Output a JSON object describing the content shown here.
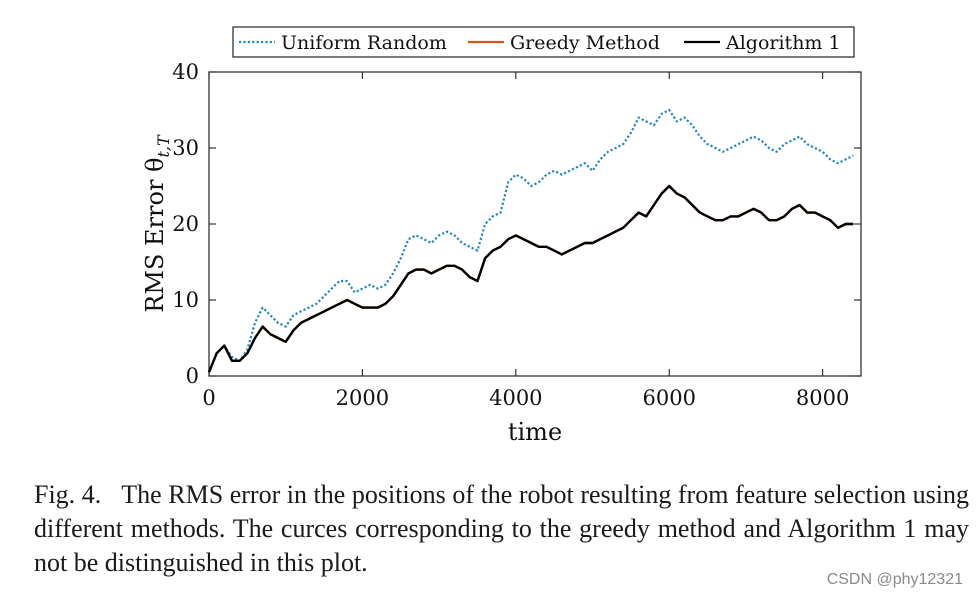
{
  "chart_data": {
    "type": "line",
    "title": "",
    "xlabel": "time",
    "ylabel": "RMS Error θ",
    "ylabel_subscript": "t,T",
    "xlim": [
      0,
      8500
    ],
    "ylim": [
      0,
      40
    ],
    "xticks": [
      0,
      2000,
      4000,
      6000,
      8000
    ],
    "yticks": [
      0,
      10,
      20,
      30,
      40
    ],
    "xtick_labels": [
      "0",
      "2000",
      "4000",
      "6000",
      "8000"
    ],
    "ytick_labels": [
      "0",
      "10",
      "20",
      "30",
      "40"
    ],
    "grid": false,
    "legend": {
      "placement": "top, outside, horizontal"
    },
    "series": [
      {
        "name": "Uniform Random",
        "color": "#1f86c8",
        "style": "dotted",
        "x": [
          0,
          100,
          200,
          300,
          400,
          500,
          600,
          700,
          800,
          900,
          1000,
          1100,
          1200,
          1300,
          1400,
          1500,
          1600,
          1700,
          1800,
          1900,
          2000,
          2100,
          2200,
          2300,
          2400,
          2500,
          2600,
          2700,
          2800,
          2900,
          3000,
          3100,
          3200,
          3300,
          3400,
          3500,
          3600,
          3700,
          3800,
          3900,
          4000,
          4100,
          4200,
          4300,
          4400,
          4500,
          4600,
          4700,
          4800,
          4900,
          5000,
          5100,
          5200,
          5300,
          5400,
          5500,
          5600,
          5700,
          5800,
          5900,
          6000,
          6100,
          6200,
          6300,
          6400,
          6500,
          6600,
          6700,
          6800,
          6900,
          7000,
          7100,
          7200,
          7300,
          7400,
          7500,
          7600,
          7700,
          7800,
          7900,
          8000,
          8100,
          8200,
          8300,
          8400
        ],
        "values": [
          0.5,
          3.0,
          4.0,
          2.5,
          2.0,
          3.5,
          7.0,
          9.0,
          8.0,
          7.0,
          6.5,
          8.0,
          8.5,
          9.0,
          9.5,
          10.5,
          11.5,
          12.5,
          12.5,
          11.0,
          11.5,
          12.0,
          11.5,
          12.0,
          13.5,
          15.5,
          18.0,
          18.5,
          18.0,
          17.5,
          18.5,
          19.0,
          18.5,
          17.5,
          17.0,
          16.5,
          20.0,
          21.0,
          21.5,
          25.5,
          26.5,
          26.0,
          25.0,
          25.5,
          26.5,
          27.0,
          26.5,
          27.0,
          27.5,
          28.0,
          27.0,
          28.5,
          29.5,
          30.0,
          30.5,
          32.0,
          34.0,
          33.5,
          33.0,
          34.5,
          35.0,
          33.5,
          34.0,
          33.0,
          31.5,
          30.5,
          30.0,
          29.5,
          30.0,
          30.5,
          31.0,
          31.5,
          31.0,
          30.0,
          29.5,
          30.5,
          31.0,
          31.5,
          30.5,
          30.0,
          29.5,
          28.5,
          28.0,
          28.5,
          29.0
        ]
      },
      {
        "name": "Greedy Method",
        "color": "#d9541a",
        "style": "solid",
        "x": [
          0,
          100,
          200,
          300,
          400,
          500,
          600,
          700,
          800,
          900,
          1000,
          1100,
          1200,
          1300,
          1400,
          1500,
          1600,
          1700,
          1800,
          1900,
          2000,
          2100,
          2200,
          2300,
          2400,
          2500,
          2600,
          2700,
          2800,
          2900,
          3000,
          3100,
          3200,
          3300,
          3400,
          3500,
          3600,
          3700,
          3800,
          3900,
          4000,
          4100,
          4200,
          4300,
          4400,
          4500,
          4600,
          4700,
          4800,
          4900,
          5000,
          5100,
          5200,
          5300,
          5400,
          5500,
          5600,
          5700,
          5800,
          5900,
          6000,
          6100,
          6200,
          6300,
          6400,
          6500,
          6600,
          6700,
          6800,
          6900,
          7000,
          7100,
          7200,
          7300,
          7400,
          7500,
          7600,
          7700,
          7800,
          7900,
          8000,
          8100,
          8200,
          8300,
          8400
        ],
        "values": [
          0.5,
          3.0,
          4.0,
          2.0,
          2.0,
          3.0,
          5.0,
          6.5,
          5.5,
          5.0,
          4.5,
          6.0,
          7.0,
          7.5,
          8.0,
          8.5,
          9.0,
          9.5,
          10.0,
          9.5,
          9.0,
          9.0,
          9.0,
          9.5,
          10.5,
          12.0,
          13.5,
          14.0,
          14.0,
          13.5,
          14.0,
          14.5,
          14.5,
          14.0,
          13.0,
          12.5,
          15.5,
          16.5,
          17.0,
          18.0,
          18.5,
          18.0,
          17.5,
          17.0,
          17.0,
          16.5,
          16.0,
          16.5,
          17.0,
          17.5,
          17.5,
          18.0,
          18.5,
          19.0,
          19.5,
          20.5,
          21.5,
          21.0,
          22.5,
          24.0,
          25.0,
          24.0,
          23.5,
          22.5,
          21.5,
          21.0,
          20.5,
          20.5,
          21.0,
          21.0,
          21.5,
          22.0,
          21.5,
          20.5,
          20.5,
          21.0,
          22.0,
          22.5,
          21.5,
          21.5,
          21.0,
          20.5,
          19.5,
          20.0,
          20.0
        ]
      },
      {
        "name": "Algorithm 1",
        "color": "#000000",
        "style": "solid",
        "x": [
          0,
          100,
          200,
          300,
          400,
          500,
          600,
          700,
          800,
          900,
          1000,
          1100,
          1200,
          1300,
          1400,
          1500,
          1600,
          1700,
          1800,
          1900,
          2000,
          2100,
          2200,
          2300,
          2400,
          2500,
          2600,
          2700,
          2800,
          2900,
          3000,
          3100,
          3200,
          3300,
          3400,
          3500,
          3600,
          3700,
          3800,
          3900,
          4000,
          4100,
          4200,
          4300,
          4400,
          4500,
          4600,
          4700,
          4800,
          4900,
          5000,
          5100,
          5200,
          5300,
          5400,
          5500,
          5600,
          5700,
          5800,
          5900,
          6000,
          6100,
          6200,
          6300,
          6400,
          6500,
          6600,
          6700,
          6800,
          6900,
          7000,
          7100,
          7200,
          7300,
          7400,
          7500,
          7600,
          7700,
          7800,
          7900,
          8000,
          8100,
          8200,
          8300,
          8400
        ],
        "values": [
          0.5,
          3.0,
          4.0,
          2.0,
          2.0,
          3.0,
          5.0,
          6.5,
          5.5,
          5.0,
          4.5,
          6.0,
          7.0,
          7.5,
          8.0,
          8.5,
          9.0,
          9.5,
          10.0,
          9.5,
          9.0,
          9.0,
          9.0,
          9.5,
          10.5,
          12.0,
          13.5,
          14.0,
          14.0,
          13.5,
          14.0,
          14.5,
          14.5,
          14.0,
          13.0,
          12.5,
          15.5,
          16.5,
          17.0,
          18.0,
          18.5,
          18.0,
          17.5,
          17.0,
          17.0,
          16.5,
          16.0,
          16.5,
          17.0,
          17.5,
          17.5,
          18.0,
          18.5,
          19.0,
          19.5,
          20.5,
          21.5,
          21.0,
          22.5,
          24.0,
          25.0,
          24.0,
          23.5,
          22.5,
          21.5,
          21.0,
          20.5,
          20.5,
          21.0,
          21.0,
          21.5,
          22.0,
          21.5,
          20.5,
          20.5,
          21.0,
          22.0,
          22.5,
          21.5,
          21.5,
          21.0,
          20.5,
          19.5,
          20.0,
          20.0
        ]
      }
    ]
  },
  "caption": {
    "label": "Fig. 4.",
    "text": "The RMS error in the positions of the robot resulting from feature selection using different methods. The curces corresponding to the greedy method and Algorithm 1 may not be distinguished in this plot."
  },
  "watermark": "CSDN @phy12321"
}
